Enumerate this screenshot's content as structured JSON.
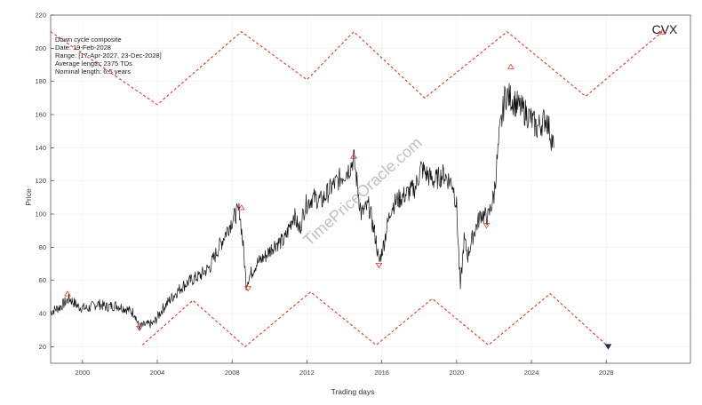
{
  "chart_data": {
    "type": "line",
    "ticker": "CVX",
    "watermark": "TimePriceOracle.com",
    "info_lines": [
      "Down cycle composite",
      "Date: 19-Feb-2028",
      "Range: [17-Apr-2027, 23-Dec-2028]",
      "Average length: 2375 TDs",
      "Nominal length: 6.5 years"
    ],
    "xlabel": "Trading days",
    "ylabel": "Price",
    "xlim": [
      1998.3,
      2032.5
    ],
    "ylim": [
      10,
      220
    ],
    "x_ticks": [
      2000,
      2004,
      2008,
      2012,
      2016,
      2020,
      2024,
      2028
    ],
    "y_ticks": [
      20,
      40,
      60,
      80,
      100,
      120,
      140,
      160,
      180,
      200,
      220
    ],
    "colors": {
      "price": "#111111",
      "cycle": "#ee3322",
      "projection": "#1a2f55"
    },
    "series": [
      {
        "x": [
          1998.3,
          1998.8,
          1999.3,
          1999.8,
          2000.3,
          2000.8,
          2001.3,
          2001.8,
          2002.3,
          2002.8,
          2003.0,
          2003.3,
          2003.8,
          2004.3,
          2004.8,
          2005.3,
          2005.8,
          2006.3,
          2006.8,
          2007.3,
          2007.8,
          2008.2,
          2008.4,
          2008.6,
          2008.75,
          2008.9,
          2009.3,
          2009.8,
          2010.3,
          2010.8,
          2011.3,
          2011.6,
          2011.9,
          2012.3,
          2012.8,
          2013.3,
          2013.8,
          2014.3,
          2014.5,
          2014.9,
          2015.3,
          2015.7,
          2015.85,
          2016.1,
          2016.5,
          2016.8,
          2017.3,
          2017.8,
          2018.1,
          2018.4,
          2018.8,
          2019.3,
          2019.8,
          2020.0,
          2020.2,
          2020.4,
          2020.6,
          2020.9,
          2021.3,
          2021.7,
          2022.0,
          2022.3,
          2022.6,
          2022.9,
          2023.3,
          2023.8,
          2024.3,
          2024.8,
          2025.2
        ],
        "y": [
          41,
          44,
          49,
          44,
          43,
          46,
          44,
          45,
          43,
          40,
          32,
          33,
          34,
          43,
          50,
          56,
          60,
          63,
          68,
          80,
          92,
          100,
          102,
          80,
          58,
          62,
          70,
          75,
          82,
          84,
          100,
          90,
          105,
          110,
          108,
          116,
          122,
          128,
          134,
          100,
          105,
          84,
          70,
          82,
          104,
          108,
          112,
          116,
          128,
          124,
          120,
          124,
          118,
          105,
          55,
          85,
          75,
          88,
          100,
          98,
          112,
          148,
          172,
          170,
          165,
          160,
          152,
          158,
          140
        ]
      }
    ],
    "peaks": [
      {
        "x": 1999.2,
        "y": 52
      },
      {
        "x": 2008.5,
        "y": 104
      },
      {
        "x": 2014.5,
        "y": 135
      },
      {
        "x": 2022.9,
        "y": 189
      }
    ],
    "troughs": [
      {
        "x": 2003.05,
        "y": 31
      },
      {
        "x": 2008.85,
        "y": 55
      },
      {
        "x": 2015.85,
        "y": 69
      },
      {
        "x": 2021.6,
        "y": 93
      }
    ],
    "upper_cycle": {
      "x": [
        1998.3,
        2004.0,
        2008.5,
        2012.0,
        2014.5,
        2018.3,
        2022.7,
        2026.9,
        2031.0
      ],
      "y": [
        210,
        166,
        210,
        181,
        210,
        170,
        210,
        171,
        210
      ]
    },
    "lower_cycle": {
      "x": [
        2003.2,
        2005.9,
        2008.7,
        2012.2,
        2015.7,
        2018.7,
        2021.7,
        2025.0,
        2028.1
      ],
      "y": [
        21,
        48,
        20,
        53,
        21,
        49,
        21,
        52,
        20
      ]
    },
    "upper_end_marker": {
      "x": 2031.0,
      "y": 210
    },
    "projection_marker": {
      "x": 2028.1,
      "y": 20
    }
  }
}
